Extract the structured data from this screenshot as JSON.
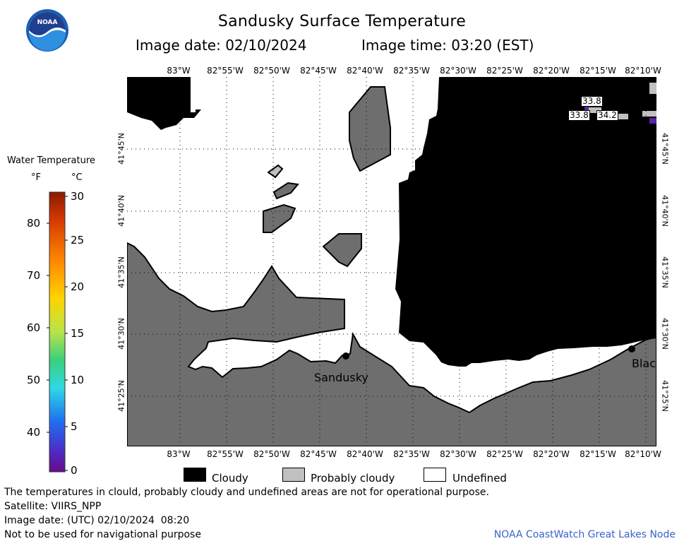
{
  "header": {
    "title": "Sandusky Surface Temperature",
    "image_date": "Image date: 02/10/2024",
    "image_time": "Image time: 03:20 (EST)"
  },
  "colorbar": {
    "title": "Water Temperature",
    "unit_f": "°F",
    "unit_c": "°C",
    "f_ticks": [
      "80",
      "70",
      "60",
      "50",
      "40"
    ],
    "c_ticks": [
      "30",
      "25",
      "20",
      "15",
      "10",
      "5",
      "0"
    ]
  },
  "map": {
    "lon_labels": [
      "83°W",
      "82°55'W",
      "82°50'W",
      "82°45'W",
      "82°40'W",
      "82°35'W",
      "82°30'W",
      "82°25'W",
      "82°20'W",
      "82°15'W",
      "82°10'W"
    ],
    "lat_labels": [
      "41°45'N",
      "41°40'N",
      "41°35'N",
      "41°30'N",
      "41°25'N"
    ],
    "cities": [
      "Sandusky",
      "Blac"
    ],
    "temperature_labels": [
      "33.8",
      "33.8",
      "34.2"
    ]
  },
  "legend": {
    "cloudy": "Cloudy",
    "probably_cloudy": "Probably cloudy",
    "undefined": "Undefined"
  },
  "footer": {
    "disclaimer": "The temperatures in clould, probably cloudy and undefined areas are not for operational purpose.",
    "satellite": "Satellite: VIIRS_NPP",
    "utc_date": "Image date: (UTC) 02/10/2024  08:20",
    "nav_warning": "Not to be used for navigational purpose",
    "credit": "NOAA CoastWatch Great Lakes Node"
  },
  "colors": {
    "land": "#6e6e6e",
    "cloud": "#000000",
    "probably_cloudy": "#c0c0c0",
    "undefined": "#ffffff",
    "credit": "#3a63c8"
  }
}
